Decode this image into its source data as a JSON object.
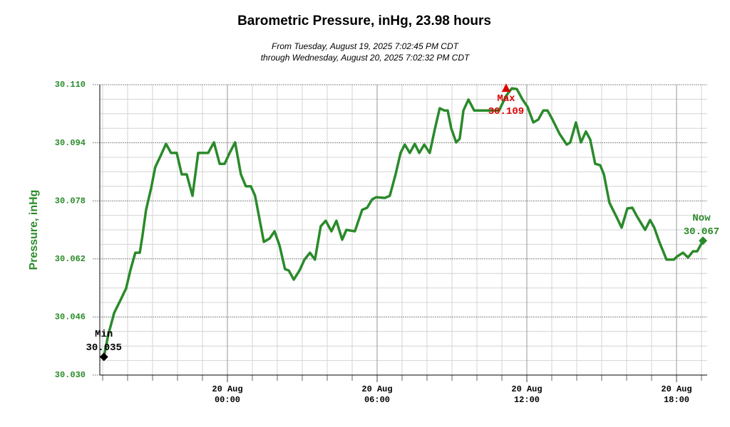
{
  "chart_data": {
    "type": "line",
    "title": "Barometric Pressure, inHg, 23.98 hours",
    "subtitle": [
      "From Tuesday, August 19, 2025 7:02:45 PM CDT",
      "through Wednesday, August 20, 2025 7:02:32 PM CDT"
    ],
    "y_label": "Pressure, inHg",
    "axis_color": "#2a8a2a",
    "grid": true,
    "xlim": [
      -5.114,
      19.229
    ],
    "ylim": [
      30.03,
      30.11
    ],
    "xticks": [
      {
        "value": 0,
        "label": [
          "20 Aug",
          "00:00"
        ]
      },
      {
        "value": 6,
        "label": [
          "20 Aug",
          "06:00"
        ]
      },
      {
        "value": 12,
        "label": [
          "20 Aug",
          "12:00"
        ]
      },
      {
        "value": 18,
        "label": [
          "20 Aug",
          "18:00"
        ]
      }
    ],
    "yticks": [
      {
        "value": 30.03,
        "label": "30.030"
      },
      30.046,
      30.062,
      30.078,
      30.094,
      {
        "value": 30.11,
        "label": "30.110"
      }
    ],
    "x": [
      -4.95,
      -4.77,
      -4.54,
      -4.26,
      -4.06,
      -3.89,
      -3.69,
      -3.51,
      -3.4,
      -3.26,
      -3.06,
      -2.89,
      -2.69,
      -2.46,
      -2.26,
      -2.03,
      -1.83,
      -1.63,
      -1.4,
      -1.17,
      -0.97,
      -0.77,
      -0.54,
      -0.31,
      -0.11,
      0.09,
      0.31,
      0.54,
      0.74,
      0.94,
      1.11,
      1.46,
      1.69,
      1.89,
      2.09,
      2.31,
      2.46,
      2.66,
      2.89,
      3.09,
      3.31,
      3.51,
      3.74,
      3.94,
      4.17,
      4.37,
      4.6,
      4.77,
      5.11,
      5.4,
      5.6,
      5.8,
      5.97,
      6.31,
      6.51,
      6.74,
      6.94,
      7.11,
      7.31,
      7.51,
      7.69,
      7.89,
      8.11,
      8.31,
      8.51,
      8.69,
      8.83,
      8.97,
      9.17,
      9.31,
      9.46,
      9.66,
      9.89,
      10.17,
      10.6,
      10.89,
      11.17,
      11.4,
      11.6,
      11.83,
      12.03,
      12.26,
      12.46,
      12.66,
      12.83,
      13.03,
      13.31,
      13.6,
      13.74,
      13.97,
      14.17,
      14.37,
      14.54,
      14.74,
      14.94,
      15.09,
      15.31,
      15.6,
      15.8,
      16.03,
      16.23,
      16.4,
      16.6,
      16.74,
      16.94,
      17.11,
      17.31,
      17.6,
      17.89,
      18.03,
      18.26,
      18.46,
      18.66,
      18.83,
      19.06
    ],
    "series": [
      {
        "name": "Pressure",
        "color": "#2a8a2a",
        "values": [
          30.035,
          30.0412,
          30.0471,
          30.051,
          30.0539,
          30.0588,
          30.0637,
          30.0637,
          30.0686,
          30.0755,
          30.0814,
          30.0873,
          30.0902,
          30.0937,
          30.0912,
          30.0912,
          30.0853,
          30.0853,
          30.0794,
          30.0912,
          30.0912,
          30.0912,
          30.0941,
          30.0882,
          30.0882,
          30.0912,
          30.0941,
          30.0853,
          30.082,
          30.082,
          30.0794,
          30.0667,
          30.0676,
          30.0696,
          30.0657,
          30.0592,
          30.0588,
          30.0563,
          30.0588,
          30.0618,
          30.0637,
          30.0618,
          30.071,
          30.0725,
          30.0696,
          30.0725,
          30.0673,
          30.07,
          30.0696,
          30.0755,
          30.0761,
          30.0784,
          30.079,
          30.0788,
          30.0794,
          30.0853,
          30.0912,
          30.0935,
          30.0912,
          30.0937,
          30.0912,
          30.0935,
          30.0912,
          30.0976,
          30.1035,
          30.1029,
          30.1029,
          30.098,
          30.0941,
          30.0951,
          30.1029,
          30.1059,
          30.1029,
          30.1029,
          30.1029,
          30.1029,
          30.1069,
          30.109,
          30.1088,
          30.1059,
          30.1039,
          30.0996,
          30.1004,
          30.1029,
          30.1029,
          30.1004,
          30.0965,
          30.0935,
          30.0941,
          30.0996,
          30.0941,
          30.0971,
          30.0949,
          30.0882,
          30.0878,
          30.0853,
          30.0775,
          30.0735,
          30.0706,
          30.0759,
          30.0761,
          30.0739,
          30.0716,
          30.07,
          30.0727,
          30.0706,
          30.0667,
          30.0618,
          30.0618,
          30.0627,
          30.0637,
          30.0624,
          30.0641,
          30.0641,
          30.067
        ]
      }
    ],
    "annotations": [
      {
        "label": "Min",
        "x": -4.95,
        "value": 30.035,
        "color": "#000000",
        "marker": "diamond"
      },
      {
        "label": "Max",
        "x": 11.17,
        "value": 30.109,
        "color": "#dd0000",
        "marker": "triangle"
      },
      {
        "label": "Now",
        "x": 19.06,
        "value": 30.067,
        "color": "#2a8a2a",
        "marker": "diamond"
      }
    ]
  }
}
